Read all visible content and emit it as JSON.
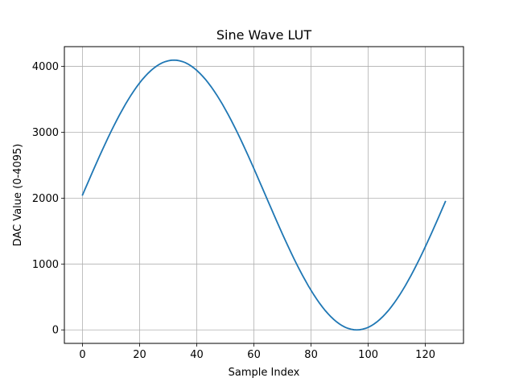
{
  "chart_data": {
    "type": "line",
    "title": "Sine Wave LUT",
    "xlabel": "Sample Index",
    "ylabel": "DAC Value (0-4095)",
    "xlim": [
      -6.35,
      133.35
    ],
    "ylim": [
      -204.75,
      4299.75
    ],
    "xticks": [
      0,
      20,
      40,
      60,
      80,
      100,
      120
    ],
    "yticks": [
      0,
      1000,
      2000,
      3000,
      4000
    ],
    "grid": true,
    "line_color": "#1f77b4",
    "series": [
      {
        "x": [
          0,
          1,
          2,
          3,
          4,
          5,
          6,
          7,
          8,
          9,
          10,
          11,
          12,
          13,
          14,
          15,
          16,
          17,
          18,
          19,
          20,
          21,
          22,
          23,
          24,
          25,
          26,
          27,
          28,
          29,
          30,
          31,
          32,
          33,
          34,
          35,
          36,
          37,
          38,
          39,
          40,
          41,
          42,
          43,
          44,
          45,
          46,
          47,
          48,
          49,
          50,
          51,
          52,
          53,
          54,
          55,
          56,
          57,
          58,
          59,
          60,
          61,
          62,
          63,
          64,
          65,
          66,
          67,
          68,
          69,
          70,
          71,
          72,
          73,
          74,
          75,
          76,
          77,
          78,
          79,
          80,
          81,
          82,
          83,
          84,
          85,
          86,
          87,
          88,
          89,
          90,
          91,
          92,
          93,
          94,
          95,
          96,
          97,
          98,
          99,
          100,
          101,
          102,
          103,
          104,
          105,
          106,
          107,
          108,
          109,
          110,
          111,
          112,
          113,
          114,
          115,
          116,
          117,
          118,
          119,
          120,
          121,
          122,
          123,
          124,
          125,
          126,
          127
        ],
        "values": [
          2048,
          2148,
          2248,
          2348,
          2447,
          2545,
          2642,
          2737,
          2831,
          2923,
          3013,
          3100,
          3185,
          3267,
          3346,
          3423,
          3495,
          3565,
          3630,
          3692,
          3750,
          3804,
          3853,
          3898,
          3939,
          3975,
          4007,
          4034,
          4056,
          4073,
          4085,
          4093,
          4095,
          4093,
          4085,
          4073,
          4056,
          4034,
          4007,
          3975,
          3939,
          3898,
          3853,
          3804,
          3750,
          3692,
          3630,
          3565,
          3495,
          3423,
          3346,
          3267,
          3185,
          3100,
          3013,
          2923,
          2831,
          2737,
          2642,
          2545,
          2447,
          2348,
          2248,
          2148,
          2048,
          1947,
          1847,
          1747,
          1648,
          1550,
          1453,
          1358,
          1264,
          1172,
          1082,
          995,
          910,
          828,
          749,
          672,
          600,
          530,
          465,
          403,
          345,
          291,
          242,
          197,
          156,
          120,
          88,
          61,
          39,
          22,
          10,
          2,
          0,
          2,
          10,
          22,
          39,
          61,
          88,
          120,
          156,
          197,
          242,
          291,
          345,
          403,
          465,
          530,
          600,
          672,
          749,
          828,
          910,
          995,
          1082,
          1172,
          1264,
          1358,
          1453,
          1550,
          1648,
          1747,
          1847,
          1947
        ]
      }
    ]
  }
}
